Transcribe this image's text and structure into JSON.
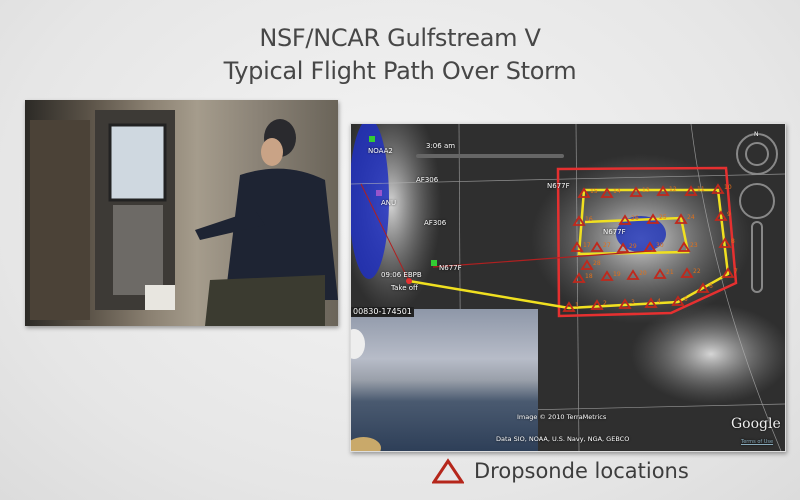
{
  "slide": {
    "title_line1": "NSF/NCAR Gulfstream V",
    "title_line2": "Typical Flight Path Over Storm"
  },
  "map": {
    "time_label": "3:06 am",
    "aircraft_labels": [
      "NOAA2",
      "AF306",
      "ANU",
      "AF306",
      "N677F",
      "N677F",
      "N677F"
    ],
    "takeoff_time": "09:06 EBPB",
    "takeoff_label": "Take off",
    "video_timestamp": "00830-174501",
    "image_credit": "Image © 2010 TerraMetrics",
    "data_credit": "Data SIO, NOAA, U.S. Navy, NGA, GEBCO",
    "logo": "Google",
    "terms_link": "Terms of Use",
    "compass_letter": "N",
    "dropsonde_labels": [
      "1",
      "2",
      "3",
      "4",
      "5",
      "6",
      "7",
      "8",
      "9",
      "10",
      "11",
      "12",
      "13",
      "14",
      "15",
      "16",
      "17",
      "18",
      "19",
      "20",
      "21",
      "22",
      "23",
      "24",
      "25",
      "26",
      "27",
      "28",
      "29",
      "30"
    ],
    "colors": {
      "flight_path": "#f0e020",
      "storm_box": "#e53030",
      "dropsonde": "#c0281c"
    }
  },
  "legend": {
    "label": "Dropsonde locations",
    "icon": "triangle-outline-icon",
    "color": "#b5261b"
  }
}
